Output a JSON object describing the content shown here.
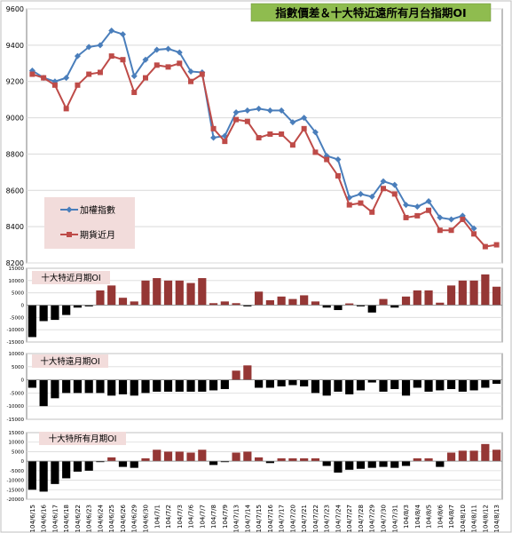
{
  "chart_data": [
    {
      "type": "line",
      "title": "指數價差＆十大特近遠所有月台指期OI",
      "x": [
        "104/6/15",
        "104/6/16",
        "104/6/17",
        "104/6/18",
        "104/6/22",
        "104/6/23",
        "104/6/24",
        "104/6/25",
        "104/6/26",
        "104/6/29",
        "104/6/30",
        "104/7/1",
        "104/7/2",
        "104/7/3",
        "104/7/6",
        "104/7/7",
        "104/7/8",
        "104/7/9",
        "104/7/13",
        "104/7/14",
        "104/7/15",
        "104/7/16",
        "104/7/17",
        "104/7/20",
        "104/7/21",
        "104/7/22",
        "104/7/23",
        "104/7/24",
        "104/7/27",
        "104/7/28",
        "104/7/29",
        "104/7/30",
        "104/7/31",
        "104/8/3",
        "104/8/4",
        "104/8/5",
        "104/8/6",
        "104/8/7",
        "104/8/10",
        "104/8/11",
        "104/8/12",
        "104/8/13"
      ],
      "series": [
        {
          "name": "加權指數",
          "color": "#4a7ebb",
          "values": [
            9260,
            9220,
            9200,
            9220,
            9340,
            9390,
            9400,
            9480,
            9460,
            9230,
            9320,
            9375,
            9380,
            9360,
            9255,
            9250,
            8890,
            8900,
            9030,
            9040,
            9050,
            9040,
            9040,
            8975,
            9000,
            8920,
            8790,
            8770,
            8560,
            8580,
            8565,
            8650,
            8630,
            8520,
            8510,
            8540,
            8450,
            8440,
            8460,
            8390,
            null,
            null
          ]
        },
        {
          "name": "期貨近月",
          "color": "#be4b48",
          "values": [
            9240,
            9220,
            9180,
            9050,
            9180,
            9240,
            9250,
            9340,
            9320,
            9140,
            9220,
            9290,
            9280,
            9300,
            9200,
            9240,
            8940,
            8870,
            8990,
            8980,
            8890,
            8910,
            8910,
            8850,
            8940,
            8810,
            8770,
            8680,
            8520,
            8530,
            8480,
            8610,
            8580,
            8450,
            8460,
            8490,
            8380,
            8380,
            8440,
            8360,
            8290,
            8300
          ]
        }
      ],
      "ylim": [
        8200,
        9600
      ],
      "yticks": [
        8200,
        8400,
        8600,
        8800,
        9000,
        9200,
        9400,
        9600
      ],
      "legend_position": "left-middle",
      "grid": true
    },
    {
      "type": "bar",
      "title": "十大特近月期OI",
      "values": [
        -13000,
        -6500,
        -6000,
        -4000,
        -1000,
        -500,
        6000,
        8000,
        3000,
        1500,
        10000,
        11000,
        10000,
        10000,
        9000,
        11000,
        800,
        1500,
        800,
        -500,
        5500,
        2000,
        3500,
        2500,
        4000,
        1500,
        -1000,
        -2000,
        700,
        -500,
        -3000,
        2500,
        -1000,
        3500,
        6000,
        6000,
        1000,
        8000,
        10000,
        10000,
        12500,
        7500
      ],
      "ylim": [
        -15000,
        15000
      ],
      "yticks": [
        15000,
        10000,
        5000,
        0,
        -5000,
        -10000,
        -15000
      ],
      "ytick_labels": [
        "15000",
        "10000",
        "5000",
        "0",
        "-5000",
        "-10000",
        "-15000"
      ],
      "grid": true
    },
    {
      "type": "bar",
      "title": "十大特遠月期OI",
      "values": [
        -3000,
        -10000,
        -7000,
        -5000,
        -5000,
        -5000,
        -5000,
        -6000,
        -5500,
        -6000,
        -5000,
        -4500,
        -4500,
        -4500,
        -4500,
        -4500,
        -4000,
        -3500,
        3500,
        5500,
        -3000,
        -3000,
        -2500,
        -2000,
        -2500,
        -5000,
        -6000,
        -4500,
        -5500,
        -4000,
        -1000,
        -4500,
        -3500,
        -6000,
        -3000,
        -4500,
        -4000,
        -3500,
        -4500,
        -4000,
        -3000,
        -1500
      ],
      "ylim": [
        -15000,
        10000
      ],
      "yticks": [
        10000,
        5000,
        0,
        -5000,
        -10000,
        -15000
      ],
      "ytick_labels": [
        "10000",
        "5000",
        "0",
        "-5000",
        "-10000",
        "-15000"
      ],
      "grid": true
    },
    {
      "type": "bar",
      "title": "十大特所有月期OI",
      "values": [
        -15000,
        -16000,
        -12000,
        -9000,
        -5500,
        -5000,
        -500,
        2000,
        -3000,
        -3500,
        1500,
        6000,
        5000,
        5000,
        4500,
        6000,
        -2000,
        -500,
        4500,
        5000,
        2000,
        -1000,
        1500,
        1500,
        1500,
        1500,
        -2500,
        -6000,
        -4500,
        -4000,
        -3500,
        -3000,
        -3500,
        -2500,
        1500,
        1500,
        -3000,
        4500,
        5500,
        5500,
        9000,
        6000
      ],
      "ylim": [
        -20000,
        15000
      ],
      "yticks": [
        15000,
        10000,
        5000,
        0,
        -5000,
        -10000,
        -15000,
        -20000
      ],
      "ytick_labels": [
        "15000",
        "10000",
        "5000",
        "0",
        "-5000",
        "-10000",
        "-15000",
        "-20000"
      ],
      "grid": true
    }
  ],
  "colors": {
    "positive_bar": "#953735",
    "negative_bar": "#000000",
    "title_box_main": "#8fbc4f",
    "title_box_sub": "#f2dcdb",
    "legend_box": "#f2dcdb",
    "plot_border": "#7f7f7f",
    "grid": "#d9d9d9"
  }
}
